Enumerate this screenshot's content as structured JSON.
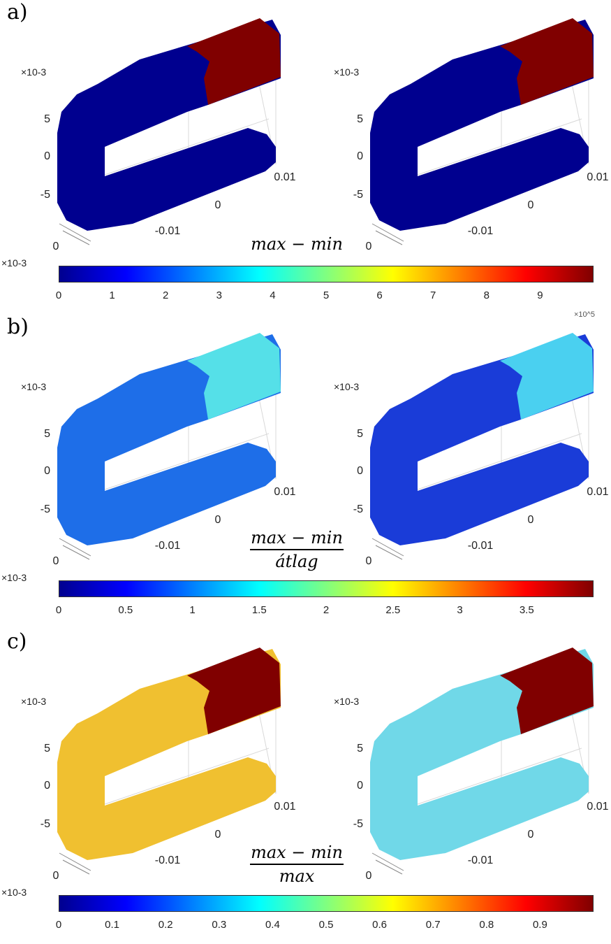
{
  "chart_data": [
    {
      "type": "heatmap",
      "panel_label": "a)",
      "formula_numerator": "max − min",
      "formula_denominator": "",
      "colormap": "jet",
      "colorbar": {
        "multiplier": "×10-3",
        "ticks": [
          0,
          1,
          2,
          3,
          4,
          5,
          6,
          7,
          8,
          9
        ],
        "range": [
          0,
          10
        ],
        "corner_label": ""
      },
      "axes": {
        "z_multiplier": "×10-3",
        "z_ticks": [
          "5",
          "0",
          "-5"
        ],
        "x_ticks": [
          "0.01",
          "0",
          "-0.01"
        ],
        "y_ticks": [
          "0"
        ]
      },
      "left_view": {
        "body": "#00008f",
        "tip": "#800000"
      },
      "right_view": {
        "body": "#00008f",
        "tip": "#800000"
      }
    },
    {
      "type": "heatmap",
      "panel_label": "b)",
      "formula_numerator": "max − min",
      "formula_denominator": "átlag",
      "colormap": "jet",
      "colorbar": {
        "multiplier": "×10-3",
        "ticks": [
          0,
          0.5,
          1,
          1.5,
          2,
          2.5,
          3,
          3.5
        ],
        "range": [
          0,
          4
        ],
        "corner_label": "×10^5"
      },
      "axes": {
        "z_multiplier": "×10-3",
        "z_ticks": [
          "5",
          "0",
          "-5"
        ],
        "x_ticks": [
          "0.01",
          "0",
          "-0.01"
        ],
        "y_ticks": [
          "0"
        ]
      },
      "left_view": {
        "body": "#1e6ee8",
        "tip": "#55e0e8"
      },
      "right_view": {
        "body": "#1a3cd8",
        "tip": "#4ad0f0"
      }
    },
    {
      "type": "heatmap",
      "panel_label": "c)",
      "formula_numerator": "max − min",
      "formula_denominator": "max",
      "colormap": "jet",
      "colorbar": {
        "multiplier": "×10-3",
        "ticks": [
          0,
          0.1,
          0.2,
          0.3,
          0.4,
          0.5,
          0.6,
          0.7,
          0.8,
          0.9
        ],
        "range": [
          0,
          1
        ],
        "corner_label": ""
      },
      "axes": {
        "z_multiplier": "×10-3",
        "z_ticks": [
          "5",
          "0",
          "-5"
        ],
        "x_ticks": [
          "0.01",
          "0",
          "-0.01"
        ],
        "y_ticks": [
          "0"
        ]
      },
      "left_view": {
        "body": "#f0c030",
        "tip": "#800000"
      },
      "right_view": {
        "body": "#70d8e8",
        "tip": "#800000"
      }
    }
  ]
}
